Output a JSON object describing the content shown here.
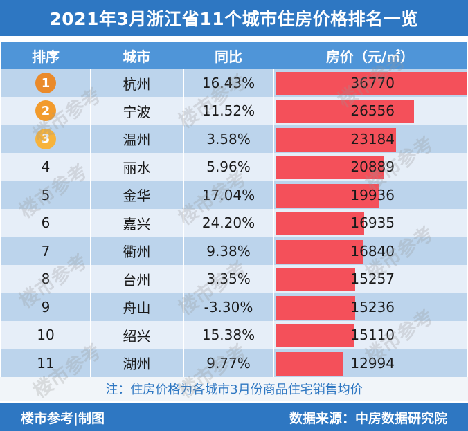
{
  "title": "2021年3月浙江省11个城市住房价格排名一览",
  "headers": {
    "rank": "排序",
    "city": "城市",
    "yoy": "同比",
    "price": "房价（元/㎡）"
  },
  "colors": {
    "bar": "#f4505a",
    "rank1": "#ea8a2a",
    "rank2": "#f29b2c",
    "rank3": "#f7b33b"
  },
  "chart_data": {
    "type": "table",
    "title": "2021年3月浙江省11个城市住房价格排名一览",
    "columns": [
      "排序",
      "城市",
      "同比",
      "房价（元/㎡）"
    ],
    "rows": [
      {
        "rank": "1",
        "city": "杭州",
        "yoy": "16.43%",
        "price": 36770
      },
      {
        "rank": "2",
        "city": "宁波",
        "yoy": "11.52%",
        "price": 26556
      },
      {
        "rank": "3",
        "city": "温州",
        "yoy": "3.58%",
        "price": 23184
      },
      {
        "rank": "4",
        "city": "丽水",
        "yoy": "5.96%",
        "price": 20889
      },
      {
        "rank": "5",
        "city": "金华",
        "yoy": "17.04%",
        "price": 19936
      },
      {
        "rank": "6",
        "city": "嘉兴",
        "yoy": "24.20%",
        "price": 16935
      },
      {
        "rank": "7",
        "city": "衢州",
        "yoy": "9.38%",
        "price": 16840
      },
      {
        "rank": "8",
        "city": "台州",
        "yoy": "3.35%",
        "price": 15257
      },
      {
        "rank": "9",
        "city": "舟山",
        "yoy": "-3.30%",
        "price": 15236
      },
      {
        "rank": "10",
        "city": "绍兴",
        "yoy": "15.38%",
        "price": 15110
      },
      {
        "rank": "11",
        "city": "湖州",
        "yoy": "9.77%",
        "price": 12994
      }
    ]
  },
  "note": "注：住房价格为各城市3月份商品住宅销售均价",
  "footer": {
    "left": "楼市参考|制图",
    "right": "数据来源：中房数据研究院"
  },
  "watermark": "楼市参考"
}
